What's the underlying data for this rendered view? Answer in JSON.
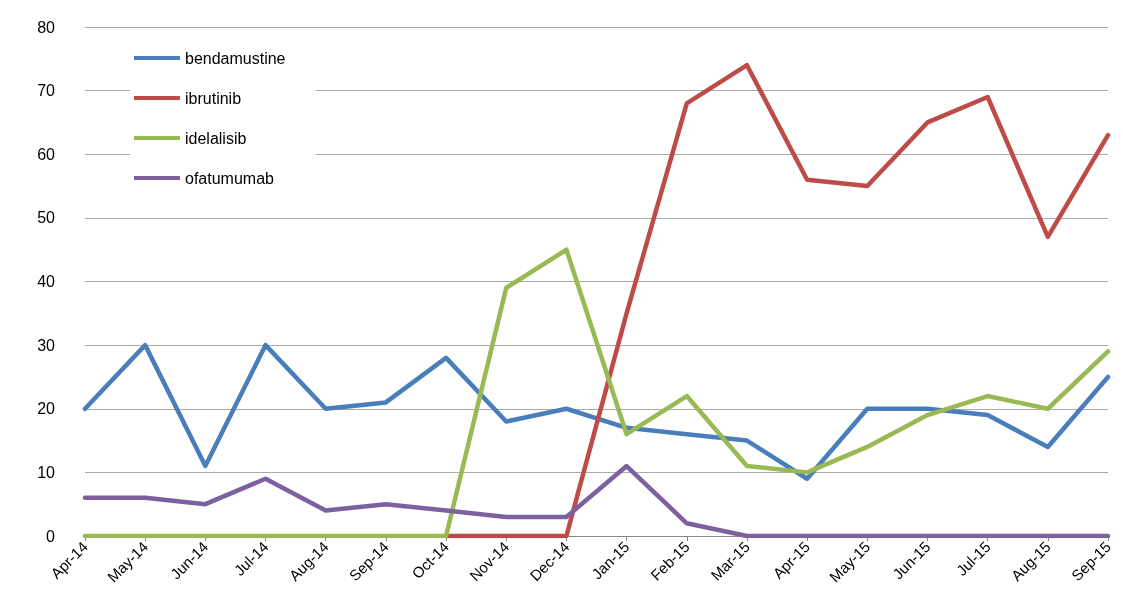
{
  "chart_data": {
    "type": "line",
    "categories": [
      "Apr-14",
      "May-14",
      "Jun-14",
      "Jul-14",
      "Aug-14",
      "Sep-14",
      "Oct-14",
      "Nov-14",
      "Dec-14",
      "Jan-15",
      "Feb-15",
      "Mar-15",
      "Apr-15",
      "May-15",
      "Jun-15",
      "Jul-15",
      "Aug-15",
      "Sep-15"
    ],
    "series": [
      {
        "name": "bendamustine",
        "color": "#4a7ebb",
        "values": [
          20,
          30,
          11,
          30,
          20,
          21,
          28,
          18,
          20,
          17,
          16,
          15,
          9,
          20,
          20,
          19,
          14,
          25
        ]
      },
      {
        "name": "ibrutinib",
        "color": "#be4b48",
        "values": [
          null,
          null,
          null,
          null,
          null,
          null,
          0,
          0,
          0,
          35,
          68,
          74,
          56,
          55,
          65,
          69,
          47,
          63
        ]
      },
      {
        "name": "idelalisib",
        "color": "#98b954",
        "values": [
          0,
          0,
          0,
          0,
          0,
          0,
          0,
          39,
          45,
          16,
          22,
          11,
          10,
          14,
          19,
          22,
          20,
          29
        ]
      },
      {
        "name": "ofatumumab",
        "color": "#7d60a0",
        "values": [
          6,
          6,
          5,
          9,
          4,
          5,
          4,
          3,
          3,
          11,
          2,
          0,
          0,
          0,
          0,
          0,
          0,
          0
        ]
      }
    ],
    "ylim": [
      0,
      80
    ],
    "yticks": [
      0,
      10,
      20,
      30,
      40,
      50,
      60,
      70,
      80
    ],
    "grid": "y",
    "legend": "top left",
    "marker": "none",
    "line_style": "solid"
  }
}
